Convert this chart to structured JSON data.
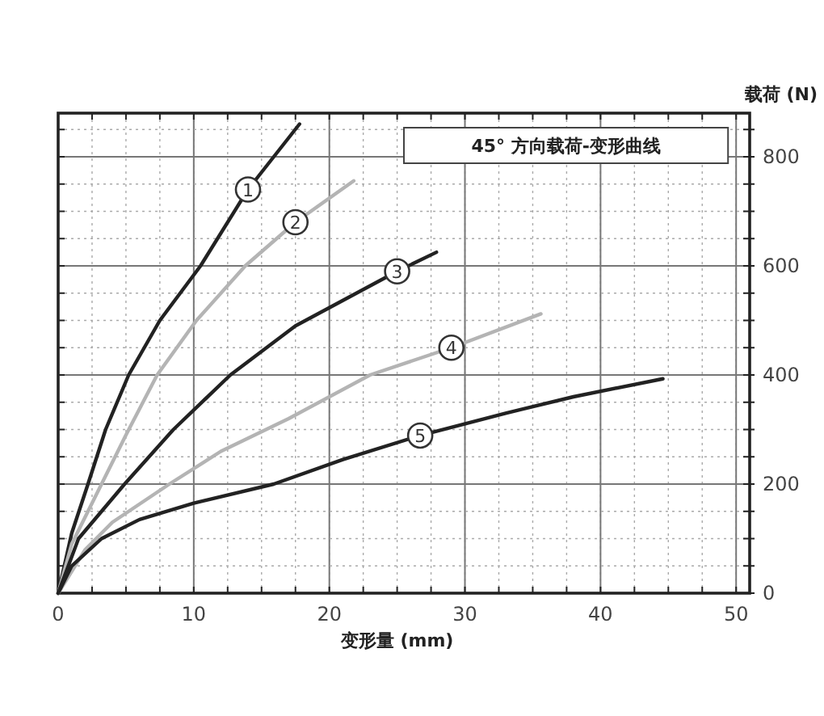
{
  "chart_data": {
    "type": "line",
    "title": "45° 方向载荷-变形曲线",
    "xlabel": "变形量 (mm)",
    "ylabel": "载荷 (N)",
    "xlim": [
      0,
      51
    ],
    "ylim": [
      0,
      880
    ],
    "xticks": [
      0,
      10,
      20,
      30,
      40,
      50
    ],
    "yticks": [
      0,
      200,
      400,
      600,
      800
    ],
    "grid": true,
    "marker": "none",
    "line_style": "solid",
    "series": [
      {
        "name": "1",
        "color": "#222222",
        "x": [
          0,
          1,
          2.2,
          3.5,
          5.2,
          7.5,
          10.5,
          14,
          17.8
        ],
        "values": [
          0,
          110,
          200,
          300,
          400,
          500,
          600,
          740,
          860
        ]
      },
      {
        "name": "2",
        "color": "#b4b4b4",
        "x": [
          0,
          1,
          3.2,
          5,
          7.3,
          10.2,
          13.8,
          17.5,
          21.8
        ],
        "values": [
          0,
          90,
          200,
          290,
          400,
          500,
          600,
          680,
          756
        ]
      },
      {
        "name": "3",
        "color": "#222222",
        "x": [
          0,
          1.5,
          4.9,
          8.5,
          12.7,
          17.5,
          22,
          25,
          27.9
        ],
        "values": [
          0,
          100,
          200,
          300,
          400,
          490,
          550,
          590,
          625
        ]
      },
      {
        "name": "4",
        "color": "#b4b4b4",
        "x": [
          0,
          2,
          4,
          8.2,
          12,
          17,
          23,
          29,
          35.6
        ],
        "values": [
          0,
          80,
          130,
          200,
          260,
          320,
          400,
          450,
          512
        ]
      },
      {
        "name": "5",
        "color": "#222222",
        "x": [
          0,
          1,
          3.2,
          6,
          10,
          15.9,
          21,
          26.7,
          33,
          38,
          44.6
        ],
        "values": [
          0,
          50,
          100,
          135,
          165,
          200,
          245,
          289,
          330,
          360,
          393
        ]
      }
    ]
  }
}
